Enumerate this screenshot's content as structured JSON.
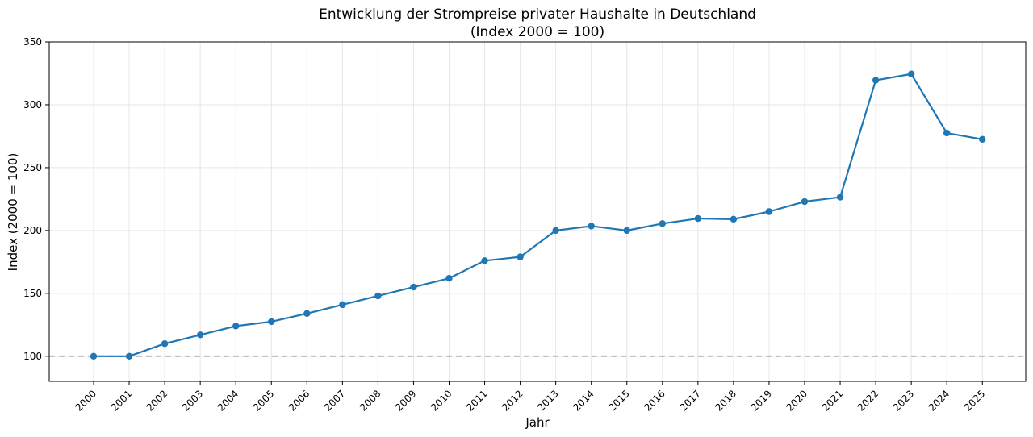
{
  "chart_data": {
    "type": "line",
    "title": "Entwicklung der Strompreise privater Haushalte in Deutschland",
    "subtitle": "(Index 2000 = 100)",
    "xlabel": "Jahr",
    "ylabel": "Index (2000 = 100)",
    "ylim": [
      80,
      350
    ],
    "yticks": [
      100,
      150,
      200,
      250,
      300,
      350
    ],
    "grid": true,
    "reference_line": {
      "y": 100,
      "style": "dashed",
      "color": "#b9b9b9"
    },
    "categories": [
      "2000",
      "2001",
      "2002",
      "2003",
      "2004",
      "2005",
      "2006",
      "2007",
      "2008",
      "2009",
      "2010",
      "2011",
      "2012",
      "2013",
      "2014",
      "2015",
      "2016",
      "2017",
      "2018",
      "2019",
      "2020",
      "2021",
      "2022",
      "2023",
      "2024",
      "2025"
    ],
    "series": [
      {
        "color": "#1f77b4",
        "values": [
          100,
          100,
          110,
          117,
          124,
          127.5,
          134,
          141,
          148,
          155,
          162,
          176,
          179,
          200,
          203.5,
          200,
          205.5,
          209.5,
          209,
          215,
          223,
          226.5,
          319.5,
          324.5,
          277.5,
          272.5
        ]
      }
    ]
  }
}
